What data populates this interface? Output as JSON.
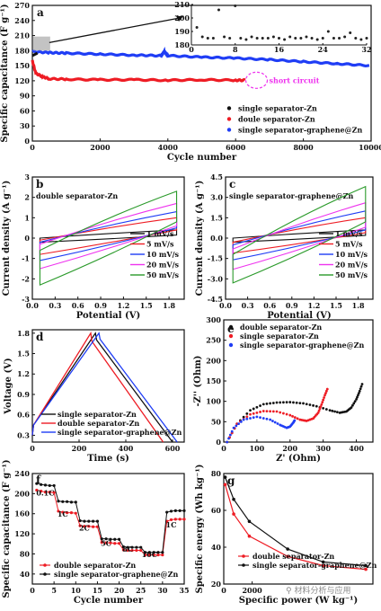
{
  "colors": {
    "black": "#111111",
    "red": "#ee1c24",
    "blue": "#1f3df5",
    "magenta": "#ee33ee",
    "green": "#2a9a2a",
    "inset": "#222222"
  },
  "chart_data": [
    {
      "panel": "a",
      "type": "scatter",
      "xlabel": "Cycle number",
      "ylabel": "Specific capacitance (F g⁻¹)",
      "xlim": [
        0,
        10000
      ],
      "ylim": [
        0,
        270
      ],
      "xticks": [
        0,
        2000,
        4000,
        6000,
        8000,
        10000
      ],
      "yticks": [
        0,
        30,
        60,
        90,
        120,
        150,
        180,
        210,
        240,
        270
      ],
      "legend_position": "right",
      "series": [
        {
          "name": "single separator-Zn",
          "x": [
            0,
            150
          ],
          "y": [
            170,
            175
          ]
        },
        {
          "name": "doule separator-Zn",
          "x": [
            0,
            100,
            300,
            500,
            1000,
            2000,
            3000,
            4000,
            5000,
            6000,
            6300
          ],
          "y": [
            160,
            135,
            128,
            124,
            123,
            122,
            122,
            121,
            122,
            121,
            121
          ]
        },
        {
          "name": "single separator-graphene@Zn",
          "x": [
            0,
            500,
            1000,
            2000,
            3000,
            3800,
            3900,
            4000,
            5000,
            6000,
            7000,
            8000,
            9000,
            10000
          ],
          "y": [
            178,
            176,
            175,
            173,
            171,
            170,
            178,
            170,
            167,
            165,
            162,
            158,
            154,
            150
          ]
        }
      ],
      "annotations": [
        "short circuit"
      ],
      "inset": {
        "xlim": [
          0,
          32
        ],
        "ylim": [
          180,
          210
        ],
        "xticks": [
          0,
          8,
          16,
          24,
          32
        ],
        "yticks": [
          180,
          190,
          200,
          210
        ],
        "x": [
          1,
          2,
          3,
          4,
          5,
          6,
          7,
          8,
          9,
          10,
          11,
          12,
          13,
          14,
          15,
          16,
          17,
          18,
          19,
          20,
          21,
          22,
          23,
          24,
          25,
          26,
          27,
          28,
          29,
          30,
          31,
          32
        ],
        "y": [
          193,
          186,
          185,
          185,
          206,
          186,
          185,
          209,
          185,
          184,
          186,
          185,
          185,
          185,
          186,
          185,
          184,
          186,
          185,
          185,
          186,
          185,
          184,
          185,
          190,
          185,
          185,
          186,
          189,
          185,
          184,
          185
        ]
      }
    },
    {
      "panel": "b",
      "type": "line",
      "title": "double separator-Zn",
      "xlabel": "Potential (V)",
      "ylabel": "Current density (A g⁻¹)",
      "xlim": [
        0.0,
        2.0
      ],
      "ylim": [
        -3.0,
        3.0
      ],
      "xticks": [
        0.0,
        0.3,
        0.6,
        0.9,
        1.2,
        1.5,
        1.8
      ],
      "yticks": [
        -3,
        -2,
        -1,
        0,
        1,
        2,
        3
      ],
      "legend_position": "bottom-right",
      "series": [
        {
          "name": "1 mV/s",
          "vmin": 0.1,
          "vmax": 1.9,
          "i_top_left": 0.0,
          "i_top_right": 0.4,
          "i_bottom_right": 0.15,
          "i_bottom_left": -0.2
        },
        {
          "name": "5 mV/s",
          "vmin": 0.1,
          "vmax": 1.9,
          "i_top_left": -0.1,
          "i_top_right": 1.0,
          "i_bottom_right": 0.4,
          "i_bottom_left": -0.8
        },
        {
          "name": "10 mV/s",
          "vmin": 0.1,
          "vmax": 1.9,
          "i_top_left": -0.2,
          "i_top_right": 1.3,
          "i_bottom_right": 0.5,
          "i_bottom_left": -1.1
        },
        {
          "name": "20 mV/s",
          "vmin": 0.1,
          "vmax": 1.9,
          "i_top_left": -0.3,
          "i_top_right": 1.7,
          "i_bottom_right": 0.6,
          "i_bottom_left": -1.5
        },
        {
          "name": "50 mV/s",
          "vmin": 0.1,
          "vmax": 1.9,
          "i_top_left": -0.6,
          "i_top_right": 2.3,
          "i_bottom_right": 0.8,
          "i_bottom_left": -2.3
        }
      ]
    },
    {
      "panel": "c",
      "type": "line",
      "title": "single separator-graphene@Zn",
      "xlabel": "Potential (V)",
      "ylabel": "Current density (A g⁻¹)",
      "xlim": [
        0.0,
        2.0
      ],
      "ylim": [
        -4.5,
        4.5
      ],
      "xticks": [
        0.0,
        0.3,
        0.6,
        0.9,
        1.2,
        1.5,
        1.8
      ],
      "yticks": [
        -4.5,
        -3.0,
        -1.5,
        0.0,
        1.5,
        3.0,
        4.5
      ],
      "legend_position": "bottom-right",
      "series": [
        {
          "name": "1 mV/s",
          "vmin": 0.1,
          "vmax": 1.9,
          "i_top_left": 0.0,
          "i_top_right": 0.6,
          "i_bottom_right": 0.2,
          "i_bottom_left": -0.3
        },
        {
          "name": "5 mV/s",
          "vmin": 0.1,
          "vmax": 1.9,
          "i_top_left": -0.3,
          "i_top_right": 1.5,
          "i_bottom_right": 0.4,
          "i_bottom_left": -1.1
        },
        {
          "name": "10 mV/s",
          "vmin": 0.1,
          "vmax": 1.9,
          "i_top_left": -0.5,
          "i_top_right": 2.0,
          "i_bottom_right": 0.6,
          "i_bottom_left": -1.6
        },
        {
          "name": "20 mV/s",
          "vmin": 0.1,
          "vmax": 1.9,
          "i_top_left": -0.8,
          "i_top_right": 2.6,
          "i_bottom_right": 0.8,
          "i_bottom_left": -2.3
        },
        {
          "name": "50 mV/s",
          "vmin": 0.1,
          "vmax": 1.9,
          "i_top_left": -1.2,
          "i_top_right": 3.8,
          "i_bottom_right": 1.2,
          "i_bottom_left": -3.3
        }
      ]
    },
    {
      "panel": "d",
      "type": "line",
      "xlabel": "Time (s)",
      "ylabel": "Voltage (V)",
      "xlim": [
        0,
        650
      ],
      "ylim": [
        0.2,
        1.85
      ],
      "xticks": [
        0,
        200,
        400,
        600
      ],
      "yticks": [
        0.3,
        0.6,
        0.9,
        1.2,
        1.5,
        1.8
      ],
      "legend_position": "bottom-left",
      "series": [
        {
          "name": "single separator-Zn",
          "x": [
            0,
            5,
            270,
            275,
            600
          ],
          "y": [
            0.3,
            0.45,
            1.8,
            1.7,
            0.2
          ]
        },
        {
          "name": "double separator-Zn",
          "x": [
            0,
            5,
            250,
            255,
            560
          ],
          "y": [
            0.3,
            0.45,
            1.8,
            1.68,
            0.2
          ]
        },
        {
          "name": "single separator-graphene@Zn",
          "x": [
            0,
            5,
            285,
            290,
            620
          ],
          "y": [
            0.3,
            0.45,
            1.8,
            1.71,
            0.2
          ]
        }
      ]
    },
    {
      "panel": "e",
      "type": "scatter",
      "xlabel": "Z' (Ohm)",
      "ylabel": "-Z'' (Ohm)",
      "xlim": [
        0,
        450
      ],
      "ylim": [
        0,
        300
      ],
      "xticks": [
        0,
        100,
        200,
        300,
        400
      ],
      "yticks": [
        0,
        50,
        100,
        150,
        200,
        250,
        300
      ],
      "legend_position": "top-left",
      "series": [
        {
          "name": "double separator-Zn",
          "x": [
            10,
            40,
            80,
            120,
            160,
            200,
            240,
            280,
            320,
            350,
            370,
            385,
            400,
            410,
            420
          ],
          "y": [
            0,
            45,
            78,
            93,
            97,
            98,
            95,
            88,
            78,
            72,
            75,
            85,
            105,
            125,
            148
          ]
        },
        {
          "name": "single separator-Zn",
          "x": [
            10,
            40,
            80,
            120,
            160,
            200,
            230,
            250,
            270,
            285,
            295,
            305,
            315
          ],
          "y": [
            0,
            45,
            68,
            76,
            75,
            66,
            55,
            52,
            58,
            72,
            92,
            115,
            135
          ]
        },
        {
          "name": "single separator-graphene@Zn",
          "x": [
            10,
            30,
            60,
            100,
            140,
            170,
            190,
            200,
            210,
            215
          ],
          "y": [
            0,
            35,
            55,
            62,
            55,
            42,
            35,
            38,
            48,
            55
          ]
        }
      ]
    },
    {
      "panel": "f",
      "type": "line",
      "xlabel": "Cycle number",
      "ylabel": "Specific capacitance (F g⁻¹)",
      "xlim": [
        0,
        35
      ],
      "ylim": [
        20,
        240
      ],
      "xticks": [
        0,
        5,
        10,
        15,
        20,
        25,
        30,
        35
      ],
      "yticks": [
        40,
        80,
        120,
        160,
        200,
        240
      ],
      "legend_position": "bottom-left",
      "rate_labels": [
        "0.1C",
        "1C",
        "2C",
        "5C",
        "8C",
        "10C",
        "1C"
      ],
      "series": [
        {
          "name": "double separator-Zn",
          "x": [
            1,
            2,
            3,
            4,
            5,
            6,
            7,
            8,
            9,
            10,
            11,
            12,
            13,
            14,
            15,
            16,
            17,
            18,
            19,
            20,
            21,
            22,
            23,
            24,
            25,
            26,
            27,
            28,
            29,
            30,
            31,
            32,
            33,
            34,
            35
          ],
          "y": [
            207,
            205,
            203,
            203,
            202,
            165,
            163,
            162,
            162,
            161,
            136,
            135,
            135,
            134,
            134,
            103,
            102,
            102,
            101,
            101,
            88,
            87,
            87,
            87,
            87,
            78,
            78,
            78,
            78,
            78,
            145,
            148,
            149,
            149,
            149
          ]
        },
        {
          "name": "single separator-graphene@Zn",
          "x": [
            1,
            2,
            3,
            4,
            5,
            6,
            7,
            8,
            9,
            10,
            11,
            12,
            13,
            14,
            15,
            16,
            17,
            18,
            19,
            20,
            21,
            22,
            23,
            24,
            25,
            26,
            27,
            28,
            29,
            30,
            31,
            32,
            33,
            34,
            35
          ],
          "y": [
            220,
            218,
            217,
            216,
            216,
            185,
            184,
            184,
            183,
            183,
            146,
            145,
            145,
            145,
            145,
            110,
            110,
            109,
            109,
            109,
            94,
            93,
            93,
            93,
            93,
            83,
            83,
            83,
            83,
            83,
            163,
            165,
            166,
            166,
            166
          ]
        }
      ]
    },
    {
      "panel": "g",
      "type": "line",
      "xlabel": "Specific power (W kg⁻¹)",
      "ylabel": "Specific energy (Wh kg⁻¹)",
      "xlim": [
        0,
        10500
      ],
      "ylim": [
        20,
        80
      ],
      "xticks": [
        0,
        2000
      ],
      "yticks": [
        20,
        40,
        60,
        80
      ],
      "legend_position": "bottom-left",
      "series": [
        {
          "name": "double separator-Zn",
          "x": [
            100,
            700,
            1800,
            4500,
            7000,
            10000
          ],
          "y": [
            74,
            58,
            46,
            35,
            30,
            28
          ]
        },
        {
          "name": "single separator-graphene@Zn",
          "x": [
            100,
            700,
            1800,
            4500,
            7000,
            10000
          ],
          "y": [
            78,
            66,
            54,
            39,
            32,
            30
          ]
        }
      ]
    }
  ],
  "watermark": "⚲ 材料分析与应用"
}
